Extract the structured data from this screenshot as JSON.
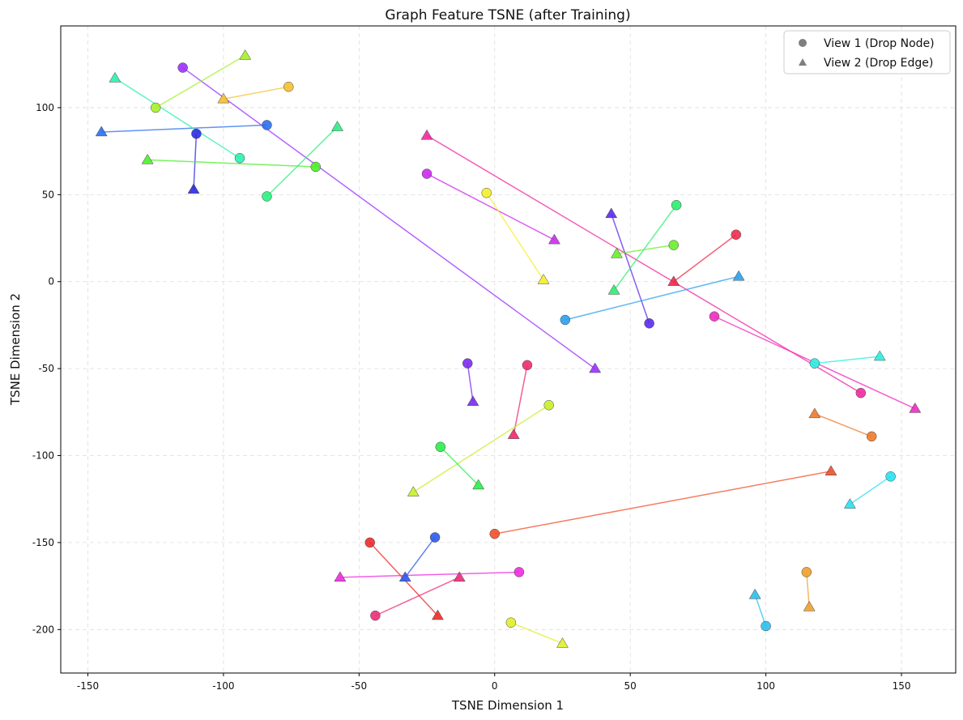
{
  "chart_data": {
    "type": "scatter",
    "title": "Graph Feature TSNE (after Training)",
    "xlabel": "TSNE Dimension 1",
    "ylabel": "TSNE Dimension 2",
    "xlim": [
      -160,
      170
    ],
    "ylim": [
      -225,
      147
    ],
    "xticks": [
      -150,
      -100,
      -50,
      0,
      50,
      100,
      150
    ],
    "yticks": [
      100,
      50,
      0,
      -50,
      -100,
      -150,
      -200
    ],
    "grid": true,
    "legend_position": "top-right",
    "legend": [
      {
        "label": "View 1 (Drop Node)",
        "marker": "circle"
      },
      {
        "label": "View 2 (Drop Edge)",
        "marker": "triangle"
      }
    ],
    "pairs": [
      {
        "color": "#9b30ff",
        "v1": [
          -115,
          123
        ],
        "v2": [
          37,
          -50
        ]
      },
      {
        "color": "#a6ef2a",
        "v1": [
          -125,
          100
        ],
        "v2": [
          -92,
          130
        ]
      },
      {
        "color": "#f5c030",
        "v1": [
          -76,
          112
        ],
        "v2": [
          -100,
          105
        ]
      },
      {
        "color": "#2a6fee",
        "v1": [
          -84,
          90
        ],
        "v2": [
          -145,
          86
        ]
      },
      {
        "color": "#2b2be0",
        "v1": [
          -110,
          85
        ],
        "v2": [
          -111,
          53
        ]
      },
      {
        "color": "#2bf0b0",
        "v1": [
          -94,
          71
        ],
        "v2": [
          -140,
          117
        ]
      },
      {
        "color": "#4cee2a",
        "v1": [
          -66,
          66
        ],
        "v2": [
          -128,
          70
        ]
      },
      {
        "color": "#2bee80",
        "v1": [
          -84,
          49
        ],
        "v2": [
          -58,
          89
        ]
      },
      {
        "color": "#f02aa0",
        "v1": [
          135,
          -64
        ],
        "v2": [
          -25,
          84
        ]
      },
      {
        "color": "#cc2aee",
        "v1": [
          -25,
          62
        ],
        "v2": [
          22,
          24
        ]
      },
      {
        "color": "#f4ee2a",
        "v1": [
          -3,
          51
        ],
        "v2": [
          18,
          1
        ]
      },
      {
        "color": "#5a2aee",
        "v1": [
          57,
          -24
        ],
        "v2": [
          43,
          39
        ]
      },
      {
        "color": "#2aee70",
        "v1": [
          67,
          44
        ],
        "v2": [
          44,
          -5
        ]
      },
      {
        "color": "#6aee2a",
        "v1": [
          66,
          21
        ],
        "v2": [
          45,
          16
        ]
      },
      {
        "color": "#f02a4a",
        "v1": [
          89,
          27
        ],
        "v2": [
          66,
          0
        ]
      },
      {
        "color": "#2aa0ee",
        "v1": [
          26,
          -22
        ],
        "v2": [
          90,
          3
        ]
      },
      {
        "color": "#f02ac0",
        "v1": [
          81,
          -20
        ],
        "v2": [
          155,
          -73
        ]
      },
      {
        "color": "#2aeee0",
        "v1": [
          118,
          -47
        ],
        "v2": [
          142,
          -43
        ]
      },
      {
        "color": "#f07a2a",
        "v1": [
          139,
          -89
        ],
        "v2": [
          118,
          -76
        ]
      },
      {
        "color": "#7a2aee",
        "v1": [
          -10,
          -47
        ],
        "v2": [
          -8,
          -69
        ]
      },
      {
        "color": "#f02a6a",
        "v1": [
          12,
          -48
        ],
        "v2": [
          7,
          -88
        ]
      },
      {
        "color": "#c8ee2a",
        "v1": [
          20,
          -71
        ],
        "v2": [
          -30,
          -121
        ]
      },
      {
        "color": "#2aee4a",
        "v1": [
          -20,
          -95
        ],
        "v2": [
          -6,
          -117
        ]
      },
      {
        "color": "#f0502a",
        "v1": [
          0,
          -145
        ],
        "v2": [
          124,
          -109
        ]
      },
      {
        "color": "#2ae0f0",
        "v1": [
          146,
          -112
        ],
        "v2": [
          131,
          -128
        ]
      },
      {
        "color": "#2a5aee",
        "v1": [
          -22,
          -147
        ],
        "v2": [
          -33,
          -170
        ]
      },
      {
        "color": "#ee2a2a",
        "v1": [
          -46,
          -150
        ],
        "v2": [
          -21,
          -192
        ]
      },
      {
        "color": "#ee2ae0",
        "v1": [
          9,
          -167
        ],
        "v2": [
          -57,
          -170
        ]
      },
      {
        "color": "#f02a7a",
        "v1": [
          -44,
          -192
        ],
        "v2": [
          -13,
          -170
        ]
      },
      {
        "color": "#e0ee2a",
        "v1": [
          6,
          -196
        ],
        "v2": [
          25,
          -208
        ]
      },
      {
        "color": "#2ac0ee",
        "v1": [
          100,
          -198
        ],
        "v2": [
          96,
          -180
        ]
      },
      {
        "color": "#f0a02a",
        "v1": [
          115,
          -167
        ],
        "v2": [
          116,
          -187
        ]
      }
    ]
  }
}
